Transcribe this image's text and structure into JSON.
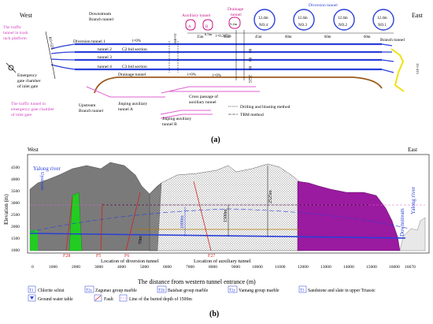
{
  "panel_a": {
    "west_label": "West",
    "east_label": "East",
    "caption": "(a)",
    "trash_rack_tunnel": [
      "The traffic",
      "tunnel in trash",
      "rack platform"
    ],
    "inlet_gate_chamber": [
      "Emergency",
      "gate chamber",
      "of inlet gate"
    ],
    "emergency_gate_tunnel": [
      "The traffic tunnel in",
      "emergency gate chamber",
      "of inlet gate"
    ],
    "downstream_branch": [
      "Downstream",
      "Branch tunnel"
    ],
    "upstream_branch": [
      "Upstream",
      "Branch tunnel"
    ],
    "diversion_tunnels": [
      "Diversion tunnel 1",
      "tunnel 2",
      "tunnel 3",
      "tunnel 4"
    ],
    "bid_sections": [
      "C2 bid section",
      "C3 bid section"
    ],
    "drainage_tunnel": "Drainage tunnel",
    "drainage_label": [
      "Drainage",
      "tunnel"
    ],
    "auxiliary_tunnel_top": "Auxiliary tunnel",
    "aux_a": "A",
    "aux_b": "B",
    "aux_width": "6.5m",
    "drain_width": "5.2m",
    "diversion_tunnel_top": "Diversion tunnel",
    "tunnel_sizes": [
      "12.4m",
      "12.4m",
      "12.4m",
      "12.4m"
    ],
    "tunnel_numbers": [
      "NO.4",
      "NO.3",
      "NO.2",
      "NO.1"
    ],
    "spacings": [
      "35m",
      "35m",
      "45m",
      "60m",
      "60m",
      "60m"
    ],
    "slopes": [
      "i=0%",
      "i=0.365%",
      "i=0%",
      "i=0%"
    ],
    "section_distances": [
      "80",
      "80",
      "80",
      "2525"
    ],
    "branch_tunnel_east": "Branch tunnel",
    "cross_passage": [
      "Cross passage of",
      "auxiliary tunnel"
    ],
    "jinping_a": [
      "Jinping auxiliary",
      "tunnel A"
    ],
    "jinping_b": [
      "Jinping auxiliary",
      "tunnel B"
    ],
    "legend_drill": "Drilling and blasting method",
    "legend_tbm": "TBM method",
    "left_vertical": "K0+025",
    "mid_vertical": "15+095",
    "east_vertical": "15+415"
  },
  "panel_b": {
    "west_label": "West",
    "east_label": "East",
    "caption": "(b)",
    "y_axis_label": "Elevation (m)",
    "x_axis_label": "The distance from western tunnel entrance (m)",
    "y_ticks": [
      "4500",
      "4000",
      "3500",
      "3000",
      "2500",
      "2000",
      "1500",
      "1000"
    ],
    "x_ticks": [
      "0",
      "1000",
      "2000",
      "3000",
      "4000",
      "5000",
      "6000",
      "7000",
      "8000",
      "9000",
      "10000",
      "11000",
      "12000",
      "13000",
      "14000",
      "15000",
      "16000",
      "16670"
    ],
    "upstream_label": "Yalong river",
    "upstream_sub": "Upstream",
    "downstream_label": "Yalong river",
    "downstream_sub": "Downstream",
    "depth_2525": "2525m",
    "depth_1500": "1500m",
    "depth_1000": "1000m",
    "depth_70": "70m",
    "faults": [
      "F28",
      "F5",
      "F6",
      "F27"
    ],
    "loc_diversion": "Location of diversion tunnel",
    "loc_auxiliary": "Location of auxiliary tunnel",
    "legend_row1": [
      {
        "sym": "T1",
        "text": "Chlorite schist"
      },
      {
        "sym": "T2z",
        "text": "Zagunao group marble"
      },
      {
        "sym": "T2b",
        "text": "Baishan group marble"
      },
      {
        "sym": "T2y",
        "text": "Yantang group marble"
      },
      {
        "sym": "T3",
        "text": "Sandstone and slate in upper Triassic"
      }
    ],
    "legend_row2": [
      "Ground water table",
      "Fault",
      "Line of the buried depth of 1500m"
    ]
  },
  "colors": {
    "tunnel_blue": "#2a3fd8",
    "drainage_brown": "#9c5a1c",
    "pink": "#e060d0",
    "green": "#22cc22",
    "purple": "#9a1aa0",
    "dark_grey": "#7a7a7a",
    "east_yellow": "#f0e010"
  }
}
